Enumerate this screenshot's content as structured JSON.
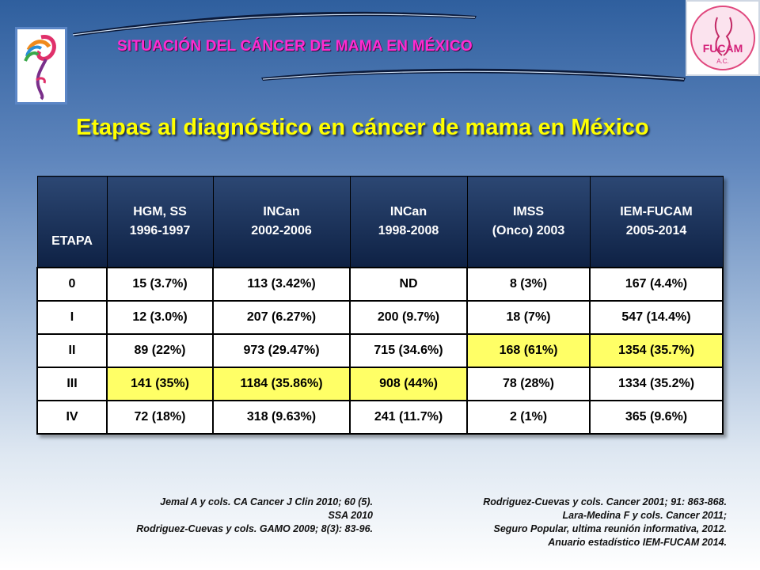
{
  "header": {
    "title": "SITUACIÓN DEL CÁNCER DE MAMA EN MÉXICO"
  },
  "logos": {
    "right_text": "FUCAM",
    "right_sub": "A.C."
  },
  "main": {
    "title": "Etapas al diagnóstico en cáncer de mama en México"
  },
  "table": {
    "headers": [
      [
        "ETAPA"
      ],
      [
        "HGM, SS",
        "1996-1997"
      ],
      [
        "INCan",
        "2002-2006"
      ],
      [
        "INCan",
        "1998-2008"
      ],
      [
        "IMSS",
        "(Onco) 2003"
      ],
      [
        "IEM-FUCAM",
        "2005-2014"
      ]
    ],
    "rows": [
      [
        "0",
        "15 (3.7%)",
        "113 (3.42%)",
        "ND",
        "8 (3%)",
        "167 (4.4%)"
      ],
      [
        "I",
        "12 (3.0%)",
        "207 (6.27%)",
        "200 (9.7%)",
        "18 (7%)",
        "547 (14.4%)"
      ],
      [
        "II",
        "89 (22%)",
        "973 (29.47%)",
        "715 (34.6%)",
        "168 (61%)",
        "1354 (35.7%)"
      ],
      [
        "III",
        "141 (35%)",
        "1184 (35.86%)",
        "908 (44%)",
        "78 (28%)",
        "1334 (35.2%)"
      ],
      [
        "IV",
        "72 (18%)",
        "318 (9.63%)",
        "241 (11.7%)",
        "2 (1%)",
        "365 (9.6%)"
      ]
    ],
    "highlight_color": "#ffff66"
  },
  "references": {
    "left": [
      "Jemal A y cols. CA Cancer J Clin 2010; 60 (5).",
      "SSA 2010",
      "Rodriguez-Cuevas y cols. GAMO 2009; 8(3): 83-96."
    ],
    "right": [
      "Rodriguez-Cuevas y cols. Cancer 2001; 91: 863-868.",
      "Lara-Medina F y cols. Cancer 2011;",
      "Seguro Popular, ultima reunión informativa,  2012.",
      "Anuario estadístico IEM-FUCAM 2014."
    ]
  },
  "colors": {
    "header_title": "#ff2bd0",
    "main_title": "#ffff00",
    "table_header_bg": "#0e2144"
  }
}
